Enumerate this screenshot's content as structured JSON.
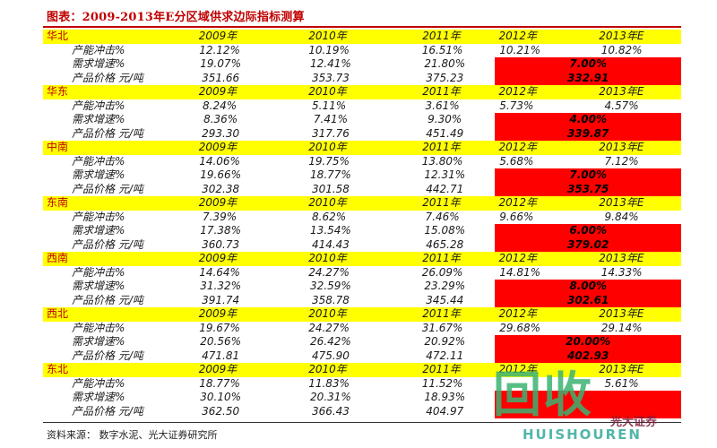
{
  "title": "图表：2009-2013年E分区域供求边际指标测算",
  "source": "资料来源：  数字水泥、光大证券研究所",
  "metric_labels": [
    "产能冲击%",
    "需求增速%",
    "产品价格 元/吨"
  ],
  "regions": [
    {
      "name": "华北",
      "years": [
        "2009年",
        "2010年",
        "2011年",
        "2012年",
        "2013年E"
      ],
      "capacity": [
        "12.12%",
        "10.19%",
        "16.51%",
        "10.21%",
        "10.82%"
      ],
      "demand": [
        "19.07%",
        "12.41%",
        "21.80%",
        "7.00%",
        ""
      ],
      "price": [
        "351.66",
        "353.73",
        "375.23",
        "332.91",
        ""
      ]
    },
    {
      "name": "华东",
      "years": [
        "2009年",
        "2010年",
        "2011年",
        "2012年",
        "2013年E"
      ],
      "capacity": [
        "8.24%",
        "5.11%",
        "3.61%",
        "5.73%",
        "4.57%"
      ],
      "demand": [
        "8.36%",
        "7.41%",
        "9.30%",
        "4.00%",
        ""
      ],
      "price": [
        "293.30",
        "317.76",
        "451.49",
        "339.87",
        ""
      ]
    },
    {
      "name": "中南",
      "years": [
        "2009年",
        "2010年",
        "2011年",
        "2012年",
        "2013年E"
      ],
      "capacity": [
        "14.06%",
        "19.75%",
        "13.80%",
        "5.68%",
        "7.12%"
      ],
      "demand": [
        "19.66%",
        "18.77%",
        "12.31%",
        "7.00%",
        ""
      ],
      "price": [
        "302.38",
        "301.58",
        "442.71",
        "353.75",
        ""
      ]
    },
    {
      "name": "东南",
      "years": [
        "2009年",
        "2010年",
        "2011年",
        "2012年",
        "2013年E"
      ],
      "capacity": [
        "7.39%",
        "8.62%",
        "7.46%",
        "9.66%",
        "9.84%"
      ],
      "demand": [
        "17.38%",
        "13.54%",
        "15.08%",
        "6.00%",
        ""
      ],
      "price": [
        "360.73",
        "414.43",
        "465.28",
        "379.02",
        ""
      ]
    },
    {
      "name": "西南",
      "years": [
        "2009年",
        "2010年",
        "2011年",
        "2012年",
        "2013年E"
      ],
      "capacity": [
        "14.64%",
        "24.27%",
        "26.09%",
        "14.81%",
        "14.33%"
      ],
      "demand": [
        "31.32%",
        "32.59%",
        "23.29%",
        "8.00%",
        ""
      ],
      "price": [
        "391.74",
        "358.78",
        "345.44",
        "302.61",
        ""
      ]
    },
    {
      "name": "西北",
      "years": [
        "2009年",
        "2010年",
        "2011年",
        "2012年",
        "2013年E"
      ],
      "capacity": [
        "19.67%",
        "24.27%",
        "31.67%",
        "29.68%",
        "29.14%"
      ],
      "demand": [
        "20.56%",
        "26.42%",
        "20.92%",
        "20.00%",
        ""
      ],
      "price": [
        "471.81",
        "475.90",
        "472.11",
        "402.93",
        ""
      ]
    },
    {
      "name": "东北",
      "years": [
        "2009年",
        "2010年",
        "2011年",
        "2012年",
        "2013年E"
      ],
      "capacity": [
        "18.77%",
        "11.83%",
        "11.52%",
        "",
        "5.61%"
      ],
      "demand": [
        "30.10%",
        "20.31%",
        "18.93%",
        "",
        ""
      ],
      "price": [
        "362.50",
        "366.43",
        "404.97",
        "",
        ""
      ]
    }
  ],
  "watermark": {
    "big": "回收",
    "small": "HUISHOUREN",
    "logo": "光大证券"
  },
  "colors": {
    "header_bg": "#ffff00",
    "highlight": "#ff0000",
    "region_text": "#c00000"
  }
}
